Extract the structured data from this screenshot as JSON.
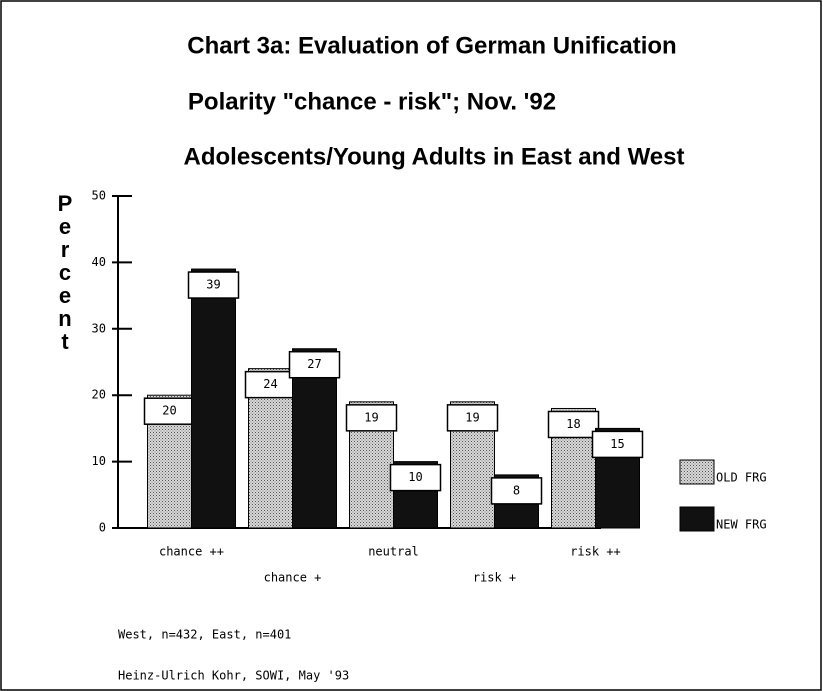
{
  "chart_data": {
    "type": "bar",
    "title": [
      "Chart 3a: Evaluation of German Unification",
      "Polarity \"chance - risk\"; Nov. '92",
      "Adolescents/Young Adults in East and West"
    ],
    "y_label": "Percent",
    "categories": [
      "chance ++",
      "chance +",
      "neutral",
      "risk +",
      "risk ++"
    ],
    "series": [
      {
        "name": "OLD FRG",
        "color": "#b8b8b8",
        "values": [
          20,
          24,
          19,
          19,
          18
        ]
      },
      {
        "name": "NEW FRG",
        "color": "#111111",
        "values": [
          39,
          27,
          10,
          8,
          15
        ]
      }
    ],
    "ylim": [
      0,
      50
    ],
    "yticks": [
      0,
      10,
      20,
      30,
      40,
      50
    ],
    "legend": "right",
    "notes": [
      "West, n=432, East, n=401",
      "Heinz-Ulrich Kohr, SOWI, May '93"
    ]
  }
}
